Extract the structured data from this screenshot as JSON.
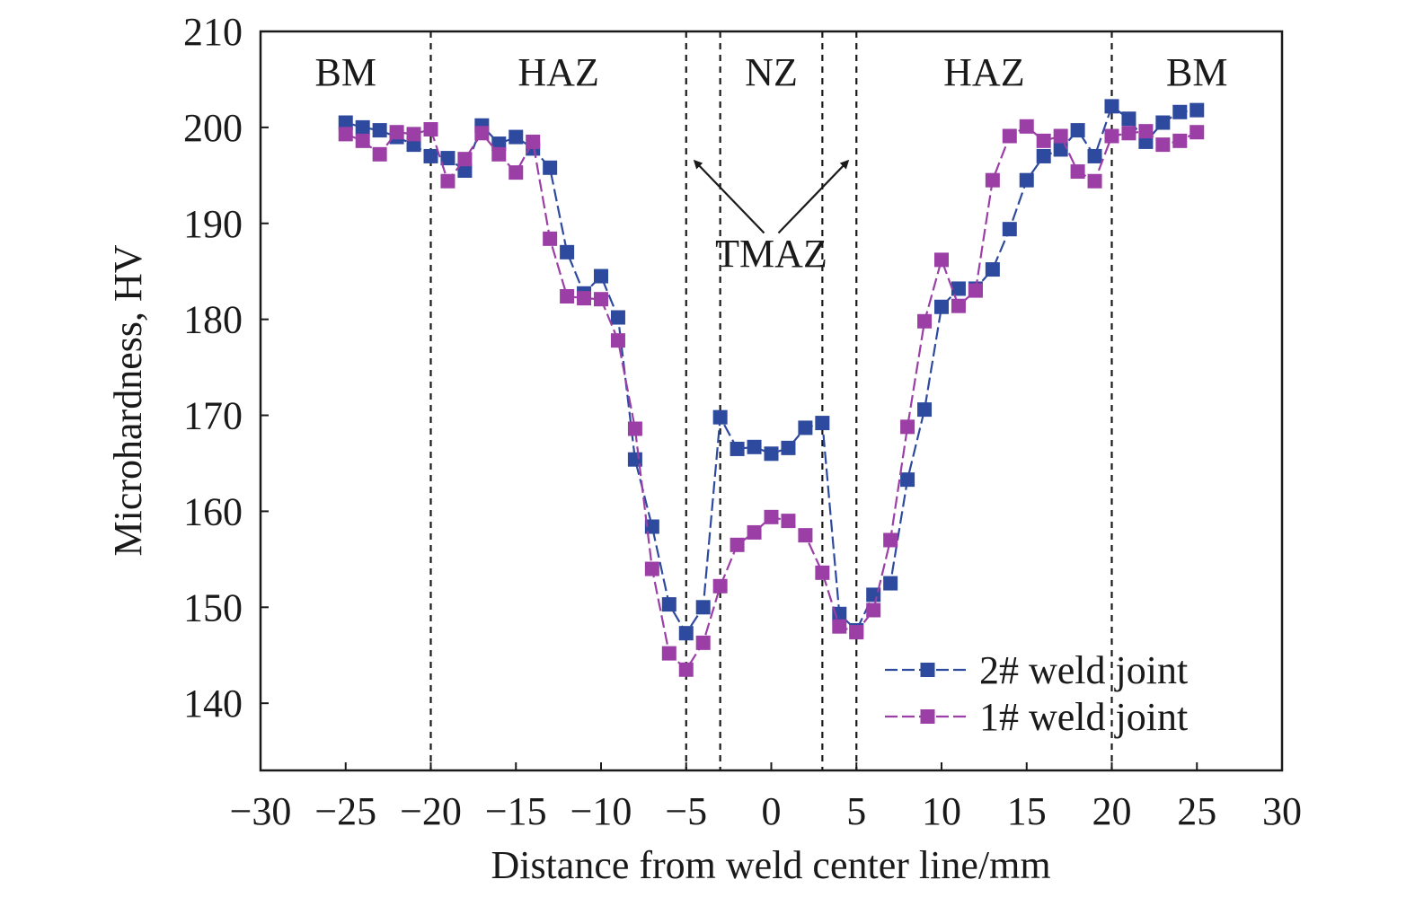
{
  "chart_data": {
    "type": "line",
    "xlabel": "Distance from weld center line/mm",
    "ylabel": "Microhardness, HV",
    "xlim": [
      -30,
      30
    ],
    "ylim": [
      133,
      210
    ],
    "xticks": [
      -30,
      -25,
      -20,
      -15,
      -10,
      -5,
      0,
      5,
      10,
      15,
      20,
      25,
      30
    ],
    "xtick_labels": [
      "−30",
      "−25",
      "−20",
      "−15",
      "−10",
      "−5",
      "0",
      "5",
      "10",
      "15",
      "20",
      "25",
      "30"
    ],
    "yticks": [
      140,
      150,
      160,
      170,
      180,
      190,
      200,
      210
    ],
    "ytick_labels": [
      "140",
      "150",
      "160",
      "170",
      "180",
      "190",
      "200",
      "210"
    ],
    "grid": false,
    "legend_position": "bottom-right",
    "boundaries": [
      -20,
      -5,
      -3,
      3,
      5,
      20
    ],
    "regions": [
      {
        "label": "BM",
        "x": -25
      },
      {
        "label": "HAZ",
        "x": -12.5
      },
      {
        "label": "NZ",
        "x": 0
      },
      {
        "label": "HAZ",
        "x": 12.5
      },
      {
        "label": "BM",
        "x": 25
      }
    ],
    "annotation": {
      "text": "TMAZ",
      "x": 0,
      "y": 185.5,
      "arrow_from": [
        0,
        189
      ],
      "arrow_targets": [
        [
          -4.5,
          196.5
        ],
        [
          4.5,
          196.5
        ]
      ]
    },
    "series": [
      {
        "name": "2# weld joint",
        "color": "#2e4a9e",
        "points": [
          [
            -25,
            200.5
          ],
          [
            -24,
            200
          ],
          [
            -23,
            199.7
          ],
          [
            -22,
            199
          ],
          [
            -21,
            198.2
          ],
          [
            -20,
            197
          ],
          [
            -19,
            196.8
          ],
          [
            -18,
            195.5
          ],
          [
            -17,
            200.2
          ],
          [
            -16,
            198.3
          ],
          [
            -15,
            199
          ],
          [
            -14,
            197.8
          ],
          [
            -13,
            195.8
          ],
          [
            -12,
            187
          ],
          [
            -11,
            182.7
          ],
          [
            -10,
            184.5
          ],
          [
            -9,
            180.2
          ],
          [
            -8,
            165.4
          ],
          [
            -7,
            158.4
          ],
          [
            -6,
            150.3
          ],
          [
            -5,
            147.3
          ],
          [
            -4,
            150
          ],
          [
            -3,
            169.8
          ],
          [
            -2,
            166.5
          ],
          [
            -1,
            166.7
          ],
          [
            0,
            166
          ],
          [
            1,
            166.6
          ],
          [
            2,
            168.7
          ],
          [
            3,
            169.2
          ],
          [
            4,
            149.3
          ],
          [
            5,
            147.6
          ],
          [
            6,
            151.3
          ],
          [
            7,
            152.5
          ],
          [
            8,
            163.3
          ],
          [
            9,
            170.6
          ],
          [
            10,
            181.3
          ],
          [
            11,
            183.2
          ],
          [
            12,
            183.2
          ],
          [
            13,
            185.2
          ],
          [
            14,
            189.4
          ],
          [
            15,
            194.5
          ],
          [
            16,
            197
          ],
          [
            17,
            197.7
          ],
          [
            18,
            199.7
          ],
          [
            19,
            197
          ],
          [
            20,
            202.2
          ],
          [
            21,
            200.9
          ],
          [
            22,
            198.5
          ],
          [
            23,
            200.5
          ],
          [
            24,
            201.6
          ],
          [
            25,
            201.8
          ]
        ]
      },
      {
        "name": "1# weld joint",
        "color": "#9b3fa6",
        "points": [
          [
            -25,
            199.3
          ],
          [
            -24,
            198.6
          ],
          [
            -23,
            197.2
          ],
          [
            -22,
            199.5
          ],
          [
            -21,
            199.3
          ],
          [
            -20,
            199.8
          ],
          [
            -19,
            194.4
          ],
          [
            -18,
            196.7
          ],
          [
            -17,
            199.4
          ],
          [
            -16,
            197.2
          ],
          [
            -15,
            195.3
          ],
          [
            -14,
            198.5
          ],
          [
            -13,
            188.4
          ],
          [
            -12,
            182.4
          ],
          [
            -11,
            182.2
          ],
          [
            -10,
            182.1
          ],
          [
            -9,
            177.8
          ],
          [
            -8,
            168.6
          ],
          [
            -7,
            154
          ],
          [
            -6,
            145.2
          ],
          [
            -5,
            143.5
          ],
          [
            -4,
            146.3
          ],
          [
            -3,
            152.2
          ],
          [
            -2,
            156.5
          ],
          [
            -1,
            157.8
          ],
          [
            0,
            159.4
          ],
          [
            1,
            159
          ],
          [
            2,
            157.5
          ],
          [
            3,
            153.6
          ],
          [
            4,
            148
          ],
          [
            5,
            147.4
          ],
          [
            6,
            149.7
          ],
          [
            7,
            157
          ],
          [
            8,
            168.8
          ],
          [
            9,
            179.8
          ],
          [
            10,
            186.2
          ],
          [
            11,
            181.4
          ],
          [
            12,
            183
          ],
          [
            13,
            194.5
          ],
          [
            14,
            199.1
          ],
          [
            15,
            200.1
          ],
          [
            16,
            198.6
          ],
          [
            17,
            199.1
          ],
          [
            18,
            195.4
          ],
          [
            19,
            194.4
          ],
          [
            20,
            199.1
          ],
          [
            21,
            199.4
          ],
          [
            22,
            199.6
          ],
          [
            23,
            198.2
          ],
          [
            24,
            198.6
          ],
          [
            25,
            199.5
          ]
        ]
      }
    ]
  }
}
